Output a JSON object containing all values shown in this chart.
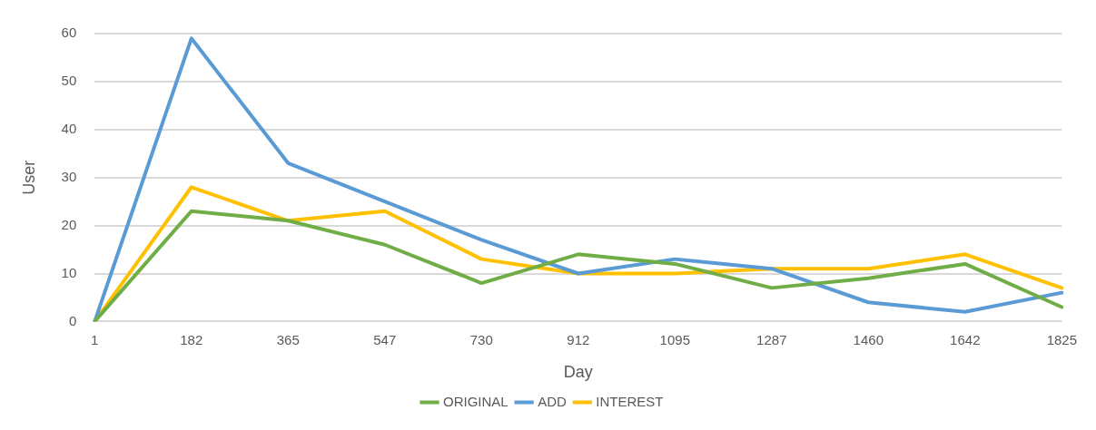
{
  "chart_data": {
    "type": "line",
    "xlabel": "Day",
    "ylabel": "User",
    "categories": [
      "1",
      "182",
      "365",
      "547",
      "730",
      "912",
      "1095",
      "1287",
      "1460",
      "1642",
      "1825"
    ],
    "series": [
      {
        "name": "ORIGINAL",
        "color": "#70ad47",
        "values": [
          0,
          23,
          21,
          16,
          8,
          14,
          12,
          7,
          9,
          12,
          3
        ]
      },
      {
        "name": "ADD",
        "color": "#5b9bd5",
        "values": [
          0,
          59,
          33,
          25,
          17,
          10,
          13,
          11,
          4,
          2,
          6
        ]
      },
      {
        "name": "INTEREST",
        "color": "#ffc000",
        "values": [
          0,
          28,
          21,
          23,
          13,
          10,
          10,
          11,
          11,
          14,
          7
        ]
      }
    ],
    "ylim": [
      0,
      60
    ],
    "yticks": [
      0,
      10,
      20,
      30,
      40,
      50,
      60
    ],
    "grid": "y",
    "legend": "bottom",
    "marker": "none",
    "line_style": "solid"
  }
}
